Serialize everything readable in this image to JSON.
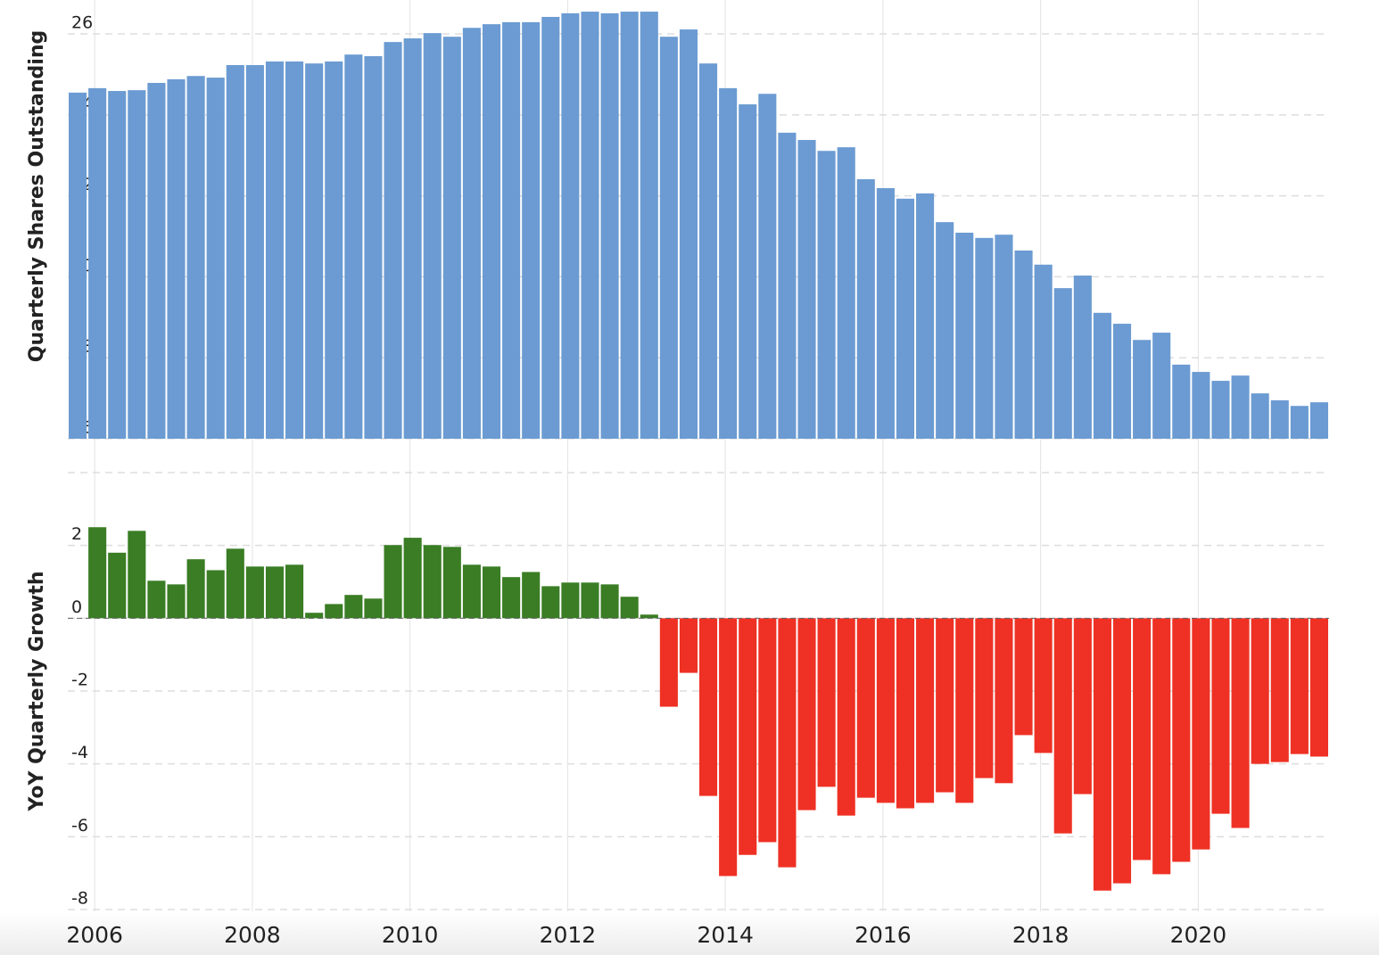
{
  "chart_data": [
    {
      "type": "bar",
      "ylabel": "Quarterly Shares Outstanding",
      "color": "#6b9bd2",
      "ylim": [
        16,
        26.6
      ],
      "yticks": [
        16,
        18,
        20,
        22,
        24,
        26
      ],
      "grid": true,
      "values": [
        24.55,
        24.66,
        24.59,
        24.61,
        24.79,
        24.88,
        24.96,
        24.92,
        25.23,
        25.23,
        25.32,
        25.32,
        25.27,
        25.32,
        25.49,
        25.45,
        25.8,
        25.89,
        26.02,
        25.93,
        26.15,
        26.24,
        26.29,
        26.29,
        26.42,
        26.51,
        26.55,
        26.51,
        26.55,
        26.55,
        25.93,
        26.11,
        25.27,
        24.66,
        24.26,
        24.52,
        23.56,
        23.38,
        23.11,
        23.2,
        22.41,
        22.19,
        21.93,
        22.06,
        21.35,
        21.09,
        20.96,
        21.04,
        20.65,
        20.3,
        19.72,
        20.03,
        19.11,
        18.84,
        18.44,
        18.62,
        17.83,
        17.65,
        17.43,
        17.56,
        17.12,
        16.95,
        16.81,
        16.9
      ]
    },
    {
      "type": "bar",
      "ylabel": "YoY Quarterly Growth",
      "color_positive": "#3a7d24",
      "color_negative": "#ee3124",
      "ylim": [
        -8,
        4
      ],
      "yticks": [
        -8,
        -6,
        -4,
        -2,
        0,
        2
      ],
      "grid": true,
      "categories": [
        null,
        "2006",
        null,
        null,
        null,
        null,
        null,
        null,
        null,
        "2008",
        null,
        null,
        null,
        null,
        null,
        null,
        null,
        "2010",
        null,
        null,
        null,
        null,
        null,
        null,
        null,
        "2012",
        null,
        null,
        null,
        null,
        null,
        null,
        null,
        "2014",
        null,
        null,
        null,
        null,
        null,
        null,
        null,
        "2016",
        null,
        null,
        null,
        null,
        null,
        null,
        null,
        "2018",
        null,
        null,
        null,
        null,
        null,
        null,
        null,
        "2020",
        null,
        null,
        null,
        null,
        null,
        null
      ],
      "values": [
        null,
        2.5,
        1.8,
        2.4,
        1.03,
        0.93,
        1.62,
        1.32,
        1.91,
        1.42,
        1.42,
        1.47,
        0.15,
        0.39,
        0.64,
        0.54,
        2.01,
        2.21,
        2.01,
        1.96,
        1.47,
        1.42,
        1.13,
        1.27,
        0.88,
        0.98,
        0.98,
        0.93,
        0.59,
        0.1,
        -2.43,
        -1.5,
        -4.88,
        -7.08,
        -6.5,
        -6.15,
        -6.84,
        -5.27,
        -4.63,
        -5.42,
        -4.93,
        -5.07,
        -5.22,
        -5.07,
        -4.78,
        -5.07,
        -4.39,
        -4.53,
        -3.21,
        -3.7,
        -5.91,
        -4.83,
        -7.48,
        -7.28,
        -6.64,
        -7.03,
        -6.69,
        -6.35,
        -5.37,
        -5.76,
        -4.0,
        -3.95,
        -3.73,
        -3.8
      ]
    }
  ]
}
